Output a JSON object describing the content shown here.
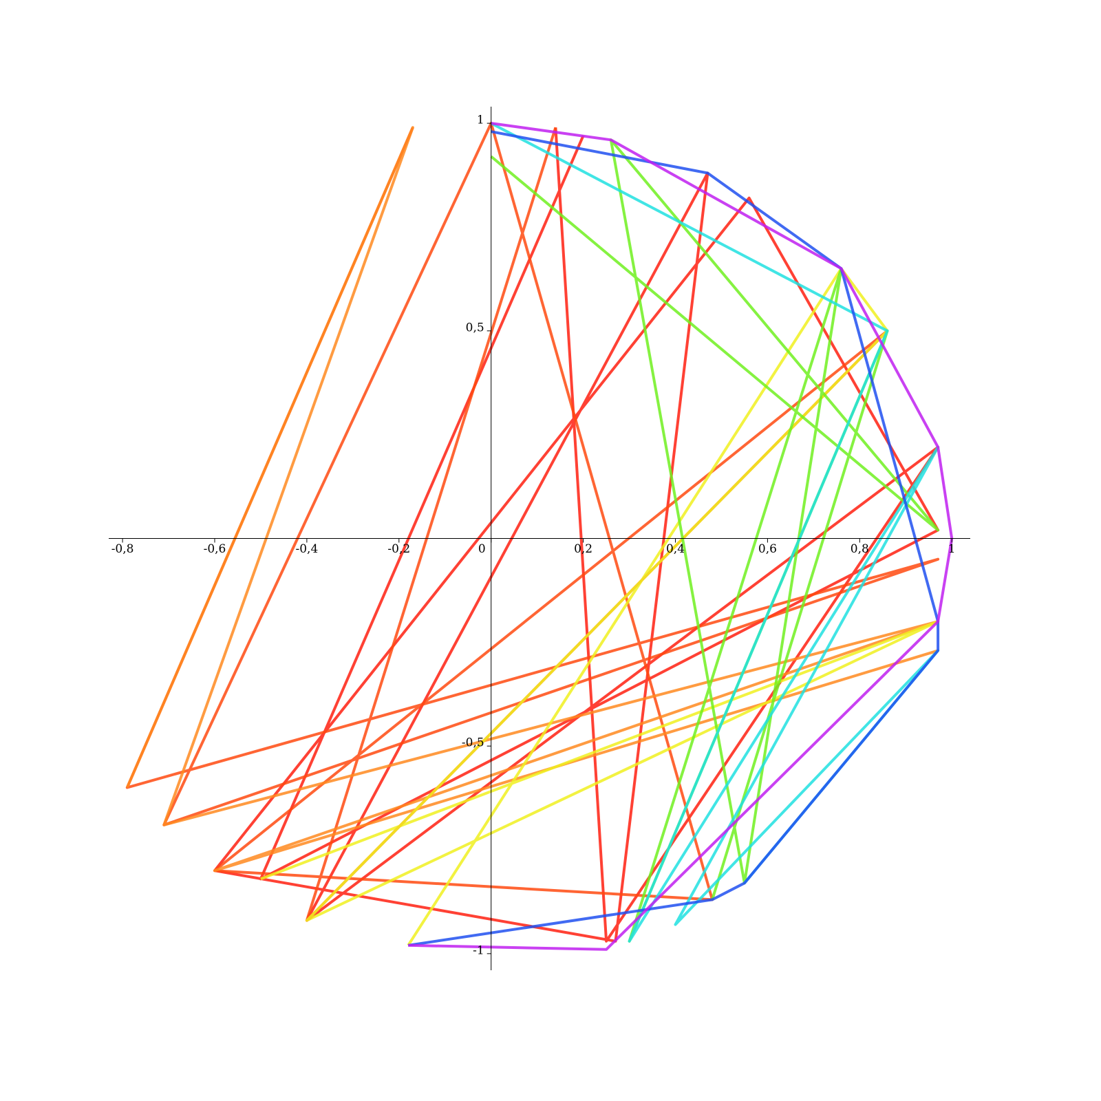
{
  "chart_data": {
    "type": "line",
    "xlim": [
      -0.83,
      1.04
    ],
    "ylim": [
      -1.04,
      1.04
    ],
    "xticks": [
      {
        "value": -0.8,
        "label": "-0,8"
      },
      {
        "value": -0.6,
        "label": "-0,6"
      },
      {
        "value": -0.4,
        "label": "-0,4"
      },
      {
        "value": -0.2,
        "label": "-0,2"
      },
      0,
      {
        "value": 0.2,
        "label": "0,2"
      },
      {
        "value": 0.4,
        "label": "0,4"
      },
      {
        "value": 0.6,
        "label": "0,6"
      },
      {
        "value": 0.8,
        "label": "0,8"
      },
      1
    ],
    "yticks": [
      {
        "value": -1,
        "label": "-1"
      },
      {
        "value": -0.5,
        "label": "-0,5"
      },
      {
        "value": 0.5,
        "label": "0,5"
      },
      1
    ],
    "series": [
      {
        "color": "#ff2010",
        "x": [
          0.14,
          0.25,
          0.97,
          -0.4,
          0.47,
          0.27,
          -0.6,
          0.56,
          0.97,
          -0.5,
          0.2
        ],
        "y": [
          0.99,
          -0.97,
          0.22,
          -0.92,
          0.88,
          -0.97,
          -0.8,
          0.82,
          0.02,
          -0.82,
          0.97
        ]
      },
      {
        "color": "#ff4a10",
        "x": [
          -0.17,
          -0.79,
          0.97,
          -0.71,
          0.0,
          0.48,
          -0.6,
          0.86,
          -0.4,
          0.14
        ],
        "y": [
          0.99,
          -0.6,
          -0.05,
          -0.69,
          1.0,
          -0.87,
          -0.8,
          0.5,
          -0.92,
          0.99
        ]
      },
      {
        "color": "#ff8a20",
        "x": [
          -0.79,
          -0.17,
          -0.71,
          0.97,
          -0.6,
          0.97
        ],
        "y": [
          -0.6,
          0.99,
          -0.69,
          -0.2,
          -0.8,
          -0.27
        ]
      },
      {
        "color": "#f0f020",
        "x": [
          -0.18,
          0.76,
          0.86,
          -0.4,
          0.97,
          -0.5
        ],
        "y": [
          -0.98,
          0.65,
          0.5,
          -0.92,
          -0.2,
          -0.82
        ]
      },
      {
        "color": "#70f020",
        "x": [
          0.0,
          0.97,
          0.26,
          0.55,
          0.76,
          0.3,
          0.86,
          0.48
        ],
        "y": [
          0.92,
          0.02,
          0.96,
          -0.83,
          0.65,
          -0.97,
          0.5,
          -0.87
        ]
      },
      {
        "color": "#20e0e0",
        "x": [
          0.0,
          0.86,
          0.3,
          0.97,
          0.4,
          0.97,
          0.55
        ],
        "y": [
          1.0,
          0.5,
          -0.97,
          0.22,
          -0.93,
          -0.27,
          -0.83
        ]
      },
      {
        "color": "#2050f0",
        "x": [
          -0.18,
          0.48,
          0.55,
          0.97,
          0.97,
          0.76,
          0.47,
          0.0
        ],
        "y": [
          -0.98,
          -0.87,
          -0.83,
          -0.27,
          -0.2,
          0.65,
          0.88,
          0.98
        ]
      },
      {
        "color": "#c020f0",
        "x": [
          0.0,
          0.26,
          0.76,
          0.97,
          1.0,
          0.97,
          0.25,
          -0.18
        ],
        "y": [
          1.0,
          0.96,
          0.65,
          0.22,
          0.0,
          -0.2,
          -0.99,
          -0.98
        ]
      }
    ]
  }
}
